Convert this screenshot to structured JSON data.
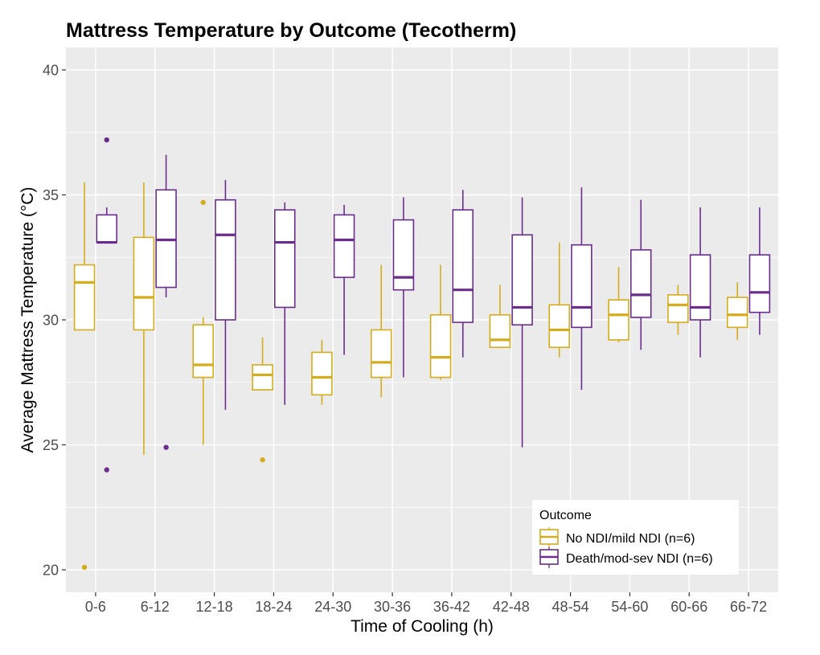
{
  "chart_data": {
    "type": "boxplot",
    "title": "Mattress Temperature by Outcome (Tecotherm)",
    "xlabel": "Time of Cooling (h)",
    "ylabel": "Average Mattress Temperature (°C)",
    "ylim": [
      19.1,
      40.9
    ],
    "yticks": [
      20,
      25,
      30,
      35,
      40
    ],
    "categories": [
      "0-6",
      "6-12",
      "12-18",
      "18-24",
      "24-30",
      "30-36",
      "36-42",
      "42-48",
      "48-54",
      "54-60",
      "60-66",
      "66-72"
    ],
    "grid": true,
    "legend": {
      "title": "Outcome",
      "position": "bottom-right-inside"
    },
    "series": [
      {
        "name": "No NDI/mild NDI (n=6)",
        "color": "#d4ac1c",
        "boxes": [
          {
            "whisker_low": 29.6,
            "q1": 29.6,
            "median": 31.5,
            "q3": 32.2,
            "whisker_high": 35.5,
            "outliers": [
              20.1
            ]
          },
          {
            "whisker_low": 24.6,
            "q1": 29.6,
            "median": 30.9,
            "q3": 33.3,
            "whisker_high": 35.5,
            "outliers": []
          },
          {
            "whisker_low": 25.0,
            "q1": 27.7,
            "median": 28.2,
            "q3": 29.8,
            "whisker_high": 30.1,
            "outliers": [
              34.7
            ]
          },
          {
            "whisker_low": 27.2,
            "q1": 27.2,
            "median": 27.8,
            "q3": 28.2,
            "whisker_high": 29.3,
            "outliers": [
              24.4
            ]
          },
          {
            "whisker_low": 26.6,
            "q1": 27.0,
            "median": 27.7,
            "q3": 28.7,
            "whisker_high": 29.2,
            "outliers": []
          },
          {
            "whisker_low": 26.9,
            "q1": 27.7,
            "median": 28.3,
            "q3": 29.6,
            "whisker_high": 32.2,
            "outliers": []
          },
          {
            "whisker_low": 27.6,
            "q1": 27.7,
            "median": 28.5,
            "q3": 30.2,
            "whisker_high": 32.2,
            "outliers": []
          },
          {
            "whisker_low": 28.9,
            "q1": 28.9,
            "median": 29.2,
            "q3": 30.2,
            "whisker_high": 31.4,
            "outliers": []
          },
          {
            "whisker_low": 28.5,
            "q1": 28.9,
            "median": 29.6,
            "q3": 30.6,
            "whisker_high": 33.1,
            "outliers": []
          },
          {
            "whisker_low": 29.1,
            "q1": 29.2,
            "median": 30.2,
            "q3": 30.8,
            "whisker_high": 32.1,
            "outliers": []
          },
          {
            "whisker_low": 29.4,
            "q1": 29.9,
            "median": 30.6,
            "q3": 31.0,
            "whisker_high": 31.4,
            "outliers": []
          },
          {
            "whisker_low": 29.2,
            "q1": 29.7,
            "median": 30.2,
            "q3": 30.9,
            "whisker_high": 31.5,
            "outliers": []
          }
        ]
      },
      {
        "name": "Death/mod-sev NDI (n=6)",
        "color": "#6a2d8e",
        "boxes": [
          {
            "whisker_low": 33.1,
            "q1": 33.1,
            "median": 33.1,
            "q3": 34.2,
            "whisker_high": 34.5,
            "outliers": [
              37.2,
              24.0
            ]
          },
          {
            "whisker_low": 30.9,
            "q1": 31.3,
            "median": 33.2,
            "q3": 35.2,
            "whisker_high": 36.6,
            "outliers": [
              24.9
            ]
          },
          {
            "whisker_low": 26.4,
            "q1": 30.0,
            "median": 33.4,
            "q3": 34.8,
            "whisker_high": 35.6,
            "outliers": []
          },
          {
            "whisker_low": 26.6,
            "q1": 30.5,
            "median": 33.1,
            "q3": 34.4,
            "whisker_high": 34.7,
            "outliers": []
          },
          {
            "whisker_low": 28.6,
            "q1": 31.7,
            "median": 33.2,
            "q3": 34.2,
            "whisker_high": 34.6,
            "outliers": []
          },
          {
            "whisker_low": 27.7,
            "q1": 31.2,
            "median": 31.7,
            "q3": 34.0,
            "whisker_high": 34.9,
            "outliers": []
          },
          {
            "whisker_low": 28.5,
            "q1": 29.9,
            "median": 31.2,
            "q3": 34.4,
            "whisker_high": 35.2,
            "outliers": []
          },
          {
            "whisker_low": 24.9,
            "q1": 29.8,
            "median": 30.5,
            "q3": 33.4,
            "whisker_high": 34.9,
            "outliers": []
          },
          {
            "whisker_low": 27.2,
            "q1": 29.7,
            "median": 30.5,
            "q3": 33.0,
            "whisker_high": 35.3,
            "outliers": []
          },
          {
            "whisker_low": 28.8,
            "q1": 30.1,
            "median": 31.0,
            "q3": 32.8,
            "whisker_high": 34.8,
            "outliers": []
          },
          {
            "whisker_low": 28.5,
            "q1": 30.0,
            "median": 30.5,
            "q3": 32.6,
            "whisker_high": 34.5,
            "outliers": []
          },
          {
            "whisker_low": 29.4,
            "q1": 30.3,
            "median": 31.1,
            "q3": 32.6,
            "whisker_high": 34.5,
            "outliers": []
          }
        ]
      }
    ]
  }
}
